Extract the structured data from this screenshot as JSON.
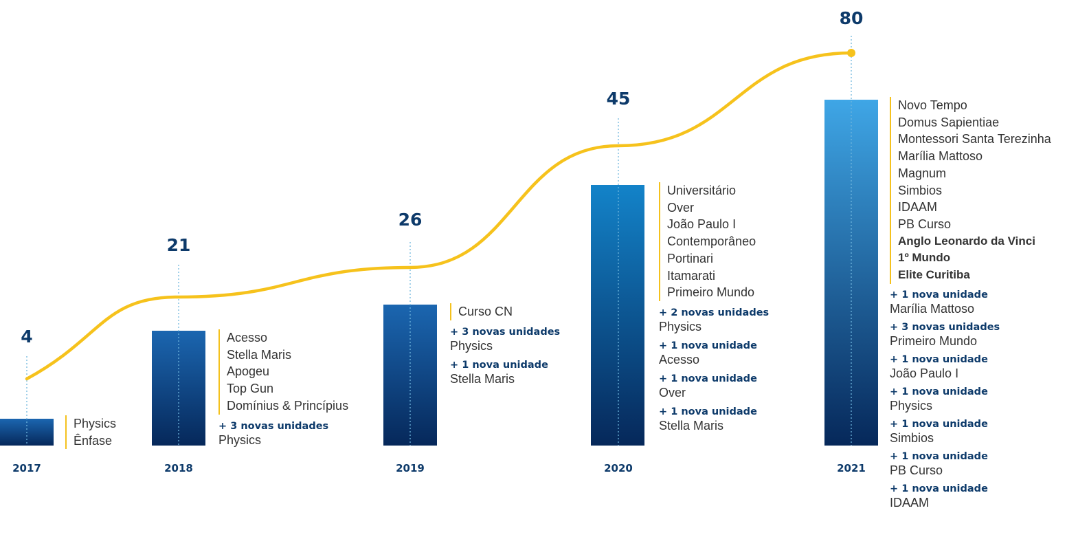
{
  "chart_data": {
    "type": "bar",
    "categories": [
      "2017",
      "2018",
      "2019",
      "2020",
      "2021"
    ],
    "values": [
      4,
      21,
      26,
      45,
      80
    ],
    "ylim": [
      0,
      80
    ],
    "line": {
      "color": "#f6c21c"
    },
    "colors": {
      "bar_top": "#1b66b0",
      "bar_bottom": "#06285a",
      "bar_2021_top": "#3fa6e6",
      "accent": "#f4c11d",
      "text_dark": "#0d3a6a"
    }
  },
  "groups": [
    {
      "names": [
        "Physics",
        "Ênfase"
      ],
      "additions": []
    },
    {
      "names": [
        "Acesso",
        "Stella Maris",
        "Apogeu",
        "Top Gun",
        "Domínius & Princípius"
      ],
      "additions": [
        {
          "head": "+ 3 novas unidades",
          "name": "Physics"
        }
      ]
    },
    {
      "names": [
        "Curso CN"
      ],
      "additions": [
        {
          "head": "+ 3 novas unidades",
          "name": "Physics"
        },
        {
          "head": "+ 1 nova unidade",
          "name": "Stella Maris"
        }
      ]
    },
    {
      "names": [
        "Universitário",
        "Over",
        "João Paulo I",
        "Contemporâneo",
        "Portinari",
        "Itamarati",
        "Primeiro Mundo"
      ],
      "additions": [
        {
          "head": "+ 2 novas unidades",
          "name": "Physics"
        },
        {
          "head": "+ 1 nova unidade",
          "name": "Acesso"
        },
        {
          "head": "+ 1 nova unidade",
          "name": "Over"
        },
        {
          "head": "+ 1 nova unidade",
          "name": "Stella Maris"
        }
      ]
    },
    {
      "names": [
        "Novo Tempo",
        "Domus Sapientiae",
        "Montessori Santa Terezinha",
        "Marília Mattoso",
        "Magnum",
        "Simbios",
        "IDAAM",
        "PB Curso",
        "Anglo Leonardo da Vinci",
        "1º Mundo",
        "Elite Curitiba"
      ],
      "bold_from": 8,
      "additions": [
        {
          "head": "+ 1 nova unidade",
          "name": "Marília Mattoso"
        },
        {
          "head": "+ 3 novas unidades",
          "name": "Primeiro Mundo"
        },
        {
          "head": "+ 1 nova unidade",
          "name": "João Paulo I"
        },
        {
          "head": "+ 1 nova unidade",
          "name": "Physics"
        },
        {
          "head": "+ 1 nova unidade",
          "name": "Simbios"
        },
        {
          "head": "+ 1 nova unidade",
          "name": "PB Curso"
        },
        {
          "head": "+ 1 nova unidade",
          "name": "IDAAM"
        }
      ]
    }
  ]
}
